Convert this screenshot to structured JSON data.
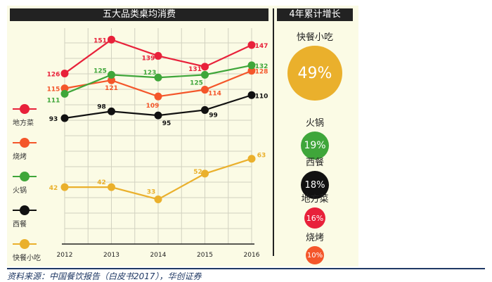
{
  "panel_title": "五大品类桌均消费",
  "side_title": "4年累计增长",
  "source": "资料来源：中国餐饮报告（白皮书2017），华创证券",
  "chart_data": {
    "type": "line",
    "title": "五大品类桌均消费",
    "categories": [
      "2012",
      "2013",
      "2014",
      "2015",
      "2016"
    ],
    "ylim": [
      0,
      160
    ],
    "grid": true,
    "legend_placement": "left",
    "series": [
      {
        "name": "地方菜",
        "color": "#e8213a",
        "values": [
          126,
          151,
          139,
          131,
          147
        ]
      },
      {
        "name": "烧烤",
        "color": "#f4562a",
        "values": [
          115,
          121,
          109,
          114,
          128
        ]
      },
      {
        "name": "火锅",
        "color": "#3fa63a",
        "values": [
          111,
          125,
          123,
          125,
          132
        ]
      },
      {
        "name": "西餐",
        "color": "#111111",
        "values": [
          93,
          98,
          95,
          99,
          110
        ]
      },
      {
        "name": "快餐小吃",
        "color": "#eab02c",
        "values": [
          42,
          42,
          33,
          52,
          63
        ]
      }
    ]
  },
  "growth": [
    {
      "name": "快餐小吃",
      "value": "49%",
      "color": "#eab02c"
    },
    {
      "name": "火锅",
      "value": "19%",
      "color": "#3fa63a"
    },
    {
      "name": "西餐",
      "value": "18%",
      "color": "#111111"
    },
    {
      "name": "地方菜",
      "value": "16%",
      "color": "#e8213a"
    },
    {
      "name": "烧烤",
      "value": "10%",
      "color": "#f4562a"
    }
  ]
}
